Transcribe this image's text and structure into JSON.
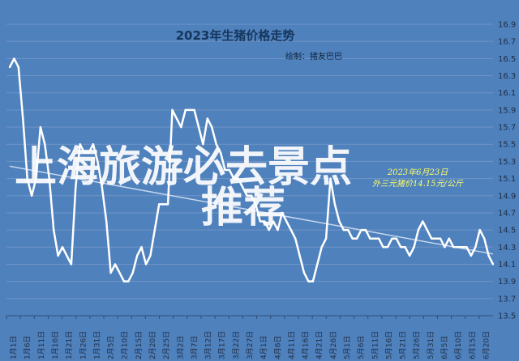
{
  "chart_data": {
    "type": "line",
    "title": "2023年生猪价格走势",
    "subtitle": "绘制：猪友巴巴",
    "ylim": [
      13.5,
      16.9
    ],
    "yticks": [
      "13.5",
      "13.7",
      "13.9",
      "14.1",
      "14.3",
      "14.5",
      "14.7",
      "14.9",
      "15.1",
      "15.3",
      "15.5",
      "15.7",
      "15.9",
      "16.1",
      "16.3",
      "16.5",
      "16.7",
      "16.9"
    ],
    "grid": true,
    "xtick_labels": [
      "1月1日",
      "1月6日",
      "1月11日",
      "1月16日",
      "1月21日",
      "1月26日",
      "1月31日",
      "2月5日",
      "2月10日",
      "2月15日",
      "2月20日",
      "2月25日",
      "3月2日",
      "3月7日",
      "3月12日",
      "3月17日",
      "3月22日",
      "3月27日",
      "4月1日",
      "4月6日",
      "4月11日",
      "4月16日",
      "4月21日",
      "4月26日",
      "5月1日",
      "5月6日",
      "5月11日",
      "5月16日",
      "5月21日",
      "5月26日",
      "5月31日",
      "6月5日",
      "6月10日",
      "6月15日",
      "6月20日"
    ],
    "series": [
      {
        "values": [
          16.4,
          16.5,
          16.4,
          15.8,
          15.1,
          14.9,
          15.1,
          15.7,
          15.5,
          15.1,
          14.5,
          14.2,
          14.3,
          14.2,
          14.1,
          15.0,
          15.5,
          15.4,
          15.4,
          15.5,
          15.3,
          15.0,
          14.6,
          14.0,
          14.1,
          14.0,
          13.9,
          13.9,
          14.0,
          14.2,
          14.3,
          14.1,
          14.2,
          14.5,
          14.8,
          14.8,
          14.8,
          15.9,
          15.8,
          15.7,
          15.9,
          15.9,
          15.9,
          15.7,
          15.5,
          15.8,
          15.7,
          15.5,
          15.4,
          15.2,
          15.2,
          15.1,
          15.1,
          15.0,
          14.9,
          14.9,
          14.8,
          14.6,
          14.6,
          14.5,
          14.6,
          14.5,
          14.7,
          14.6,
          14.5,
          14.4,
          14.2,
          14.0,
          13.9,
          13.9,
          14.1,
          14.3,
          14.4,
          15.1,
          14.8,
          14.6,
          14.5,
          14.5,
          14.4,
          14.4,
          14.5,
          14.5,
          14.4,
          14.4,
          14.4,
          14.3,
          14.3,
          14.4,
          14.4,
          14.3,
          14.3,
          14.2,
          14.3,
          14.5,
          14.6,
          14.5,
          14.4,
          14.4,
          14.4,
          14.3,
          14.4,
          14.3,
          14.3,
          14.3,
          14.3,
          14.2,
          14.3,
          14.5,
          14.4,
          14.2,
          14.1
        ]
      }
    ],
    "annotation": [
      "2023年6月23日",
      "外三元猪价14.15元/公斤"
    ],
    "watermark": [
      "上海旅游必去景点",
      "推荐"
    ],
    "colors": {
      "background": "#4f81bd",
      "line": "#ffffff",
      "grid": "#7094c6",
      "annotation": "#ffff66"
    }
  }
}
